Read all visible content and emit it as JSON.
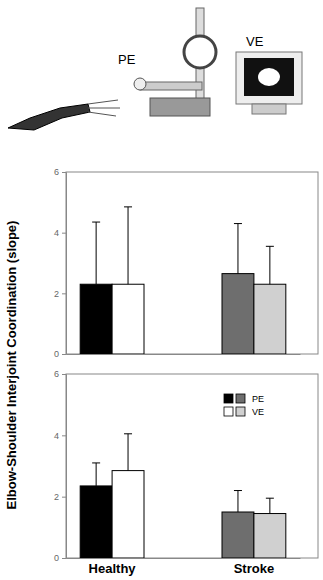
{
  "illustration": {
    "labels": [
      "PE",
      "VE"
    ]
  },
  "chart_data": [
    {
      "type": "bar",
      "ylabel": "Elbow-Shoulder Interjoint Coordination (slope)",
      "categories": [
        null,
        null
      ],
      "tick_labels": "y",
      "series": [
        {
          "colors": [
            "#000000",
            "#6e6e6e"
          ],
          "values": [
            2.3,
            2.65
          ],
          "errors": [
            2.05,
            1.65
          ]
        },
        {
          "colors": [
            "#ffffff",
            "#d0d0d0"
          ],
          "values": [
            2.3,
            2.3
          ],
          "errors": [
            2.55,
            1.25
          ]
        }
      ],
      "ylim": [
        0,
        6
      ],
      "yticks": [
        0,
        2,
        4,
        6
      ]
    },
    {
      "type": "bar",
      "categories": [
        "Healthy",
        "Stroke"
      ],
      "series": [
        {
          "name": "PE",
          "colors": [
            "#000000",
            "#6e6e6e"
          ],
          "values": [
            2.35,
            1.5
          ],
          "errors": [
            0.75,
            0.7
          ]
        },
        {
          "name": "VE",
          "colors": [
            "#ffffff",
            "#d0d0d0"
          ],
          "values": [
            2.85,
            1.45
          ],
          "errors": [
            1.2,
            0.5
          ]
        }
      ],
      "ylim": [
        0,
        6
      ],
      "yticks": [
        0,
        2,
        4,
        6
      ],
      "legend": "upper right"
    }
  ]
}
